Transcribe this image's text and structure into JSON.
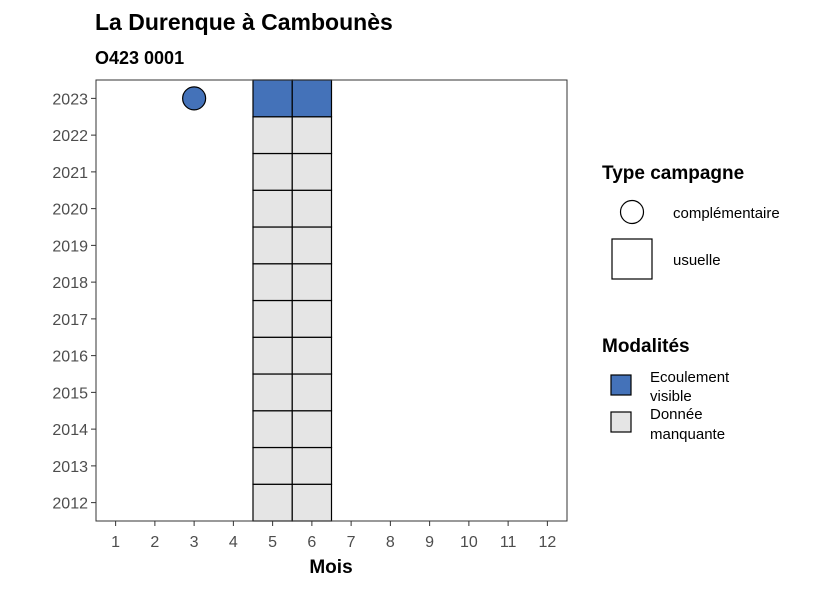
{
  "chart_data": {
    "type": "heatmap",
    "title": "La Durenque à Cambounès",
    "subtitle": "O423 0001",
    "xlabel": "Mois",
    "ylabel": "",
    "x_ticks": [
      "1",
      "2",
      "3",
      "4",
      "5",
      "6",
      "7",
      "8",
      "9",
      "10",
      "11",
      "12"
    ],
    "y_ticks": [
      "2012",
      "2013",
      "2014",
      "2015",
      "2016",
      "2017",
      "2018",
      "2019",
      "2020",
      "2021",
      "2022",
      "2023"
    ],
    "xlim": [
      0.5,
      12.5
    ],
    "ylim": [
      2011.5,
      2023.5
    ],
    "grid": false,
    "cells": [
      {
        "month": 5,
        "year": 2012,
        "modalite": "Donnée manquante",
        "campagne": "usuelle"
      },
      {
        "month": 6,
        "year": 2012,
        "modalite": "Donnée manquante",
        "campagne": "usuelle"
      },
      {
        "month": 5,
        "year": 2013,
        "modalite": "Donnée manquante",
        "campagne": "usuelle"
      },
      {
        "month": 6,
        "year": 2013,
        "modalite": "Donnée manquante",
        "campagne": "usuelle"
      },
      {
        "month": 5,
        "year": 2014,
        "modalite": "Donnée manquante",
        "campagne": "usuelle"
      },
      {
        "month": 6,
        "year": 2014,
        "modalite": "Donnée manquante",
        "campagne": "usuelle"
      },
      {
        "month": 5,
        "year": 2015,
        "modalite": "Donnée manquante",
        "campagne": "usuelle"
      },
      {
        "month": 6,
        "year": 2015,
        "modalite": "Donnée manquante",
        "campagne": "usuelle"
      },
      {
        "month": 5,
        "year": 2016,
        "modalite": "Donnée manquante",
        "campagne": "usuelle"
      },
      {
        "month": 6,
        "year": 2016,
        "modalite": "Donnée manquante",
        "campagne": "usuelle"
      },
      {
        "month": 5,
        "year": 2017,
        "modalite": "Donnée manquante",
        "campagne": "usuelle"
      },
      {
        "month": 6,
        "year": 2017,
        "modalite": "Donnée manquante",
        "campagne": "usuelle"
      },
      {
        "month": 5,
        "year": 2018,
        "modalite": "Donnée manquante",
        "campagne": "usuelle"
      },
      {
        "month": 6,
        "year": 2018,
        "modalite": "Donnée manquante",
        "campagne": "usuelle"
      },
      {
        "month": 5,
        "year": 2019,
        "modalite": "Donnée manquante",
        "campagne": "usuelle"
      },
      {
        "month": 6,
        "year": 2019,
        "modalite": "Donnée manquante",
        "campagne": "usuelle"
      },
      {
        "month": 5,
        "year": 2020,
        "modalite": "Donnée manquante",
        "campagne": "usuelle"
      },
      {
        "month": 6,
        "year": 2020,
        "modalite": "Donnée manquante",
        "campagne": "usuelle"
      },
      {
        "month": 5,
        "year": 2021,
        "modalite": "Donnée manquante",
        "campagne": "usuelle"
      },
      {
        "month": 6,
        "year": 2021,
        "modalite": "Donnée manquante",
        "campagne": "usuelle"
      },
      {
        "month": 5,
        "year": 2022,
        "modalite": "Donnée manquante",
        "campagne": "usuelle"
      },
      {
        "month": 6,
        "year": 2022,
        "modalite": "Donnée manquante",
        "campagne": "usuelle"
      },
      {
        "month": 5,
        "year": 2023,
        "modalite": "Ecoulement visible",
        "campagne": "usuelle"
      },
      {
        "month": 6,
        "year": 2023,
        "modalite": "Ecoulement visible",
        "campagne": "usuelle"
      },
      {
        "month": 3,
        "year": 2023,
        "modalite": "Ecoulement visible",
        "campagne": "complémentaire"
      }
    ],
    "legend": {
      "position": "right",
      "type_campagne": {
        "title": "Type campagne",
        "entries": [
          {
            "label": "complémentaire",
            "shape": "circle"
          },
          {
            "label": "usuelle",
            "shape": "square"
          }
        ]
      },
      "modalites": {
        "title": "Modalités",
        "entries": [
          {
            "label_line1": "Ecoulement",
            "label_line2": "visible",
            "color": "#4472b9"
          },
          {
            "label_line1": "Donnée",
            "label_line2": "manquante",
            "color": "#e5e5e5"
          }
        ]
      }
    },
    "colors": {
      "Ecoulement visible": "#4472b9",
      "Donnée manquante": "#e5e5e5"
    }
  }
}
